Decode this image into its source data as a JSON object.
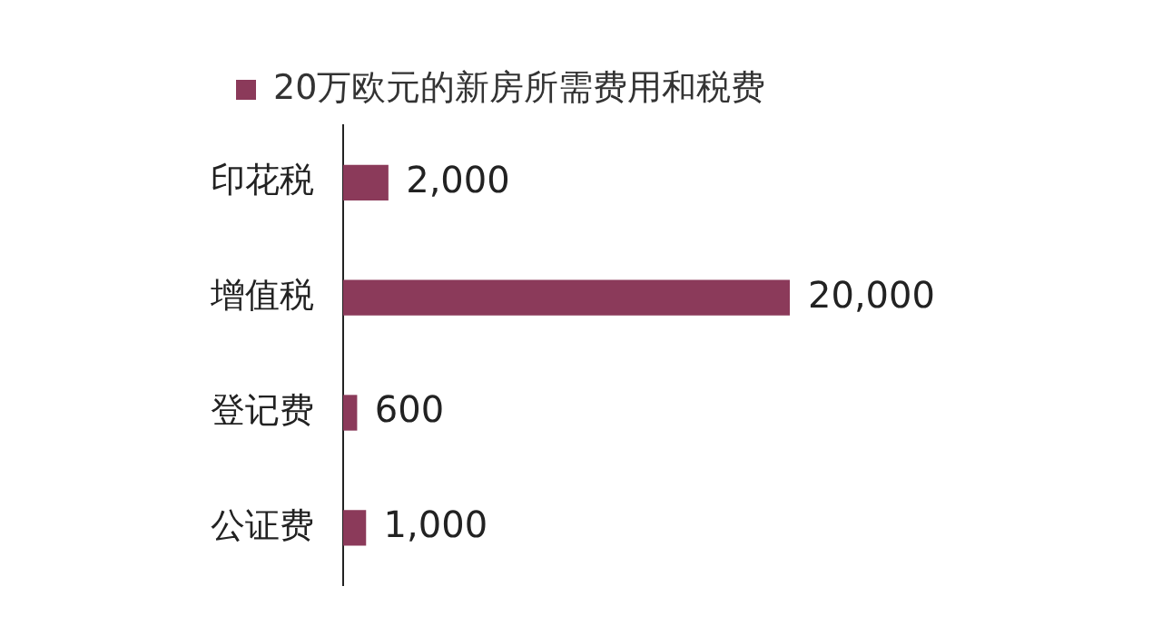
{
  "chart_data": {
    "type": "bar",
    "orientation": "horizontal",
    "categories": [
      "印花税",
      "增值税",
      "登记费",
      "公证费"
    ],
    "series": [
      {
        "name": "20万欧元的新房所需费用和税费",
        "color": "#8b3a5a",
        "values": [
          2000,
          20000,
          600,
          1000
        ],
        "value_labels": [
          "2,000",
          "20,000",
          "600",
          "1,000"
        ]
      }
    ],
    "legend": "top left",
    "grid": false
  }
}
